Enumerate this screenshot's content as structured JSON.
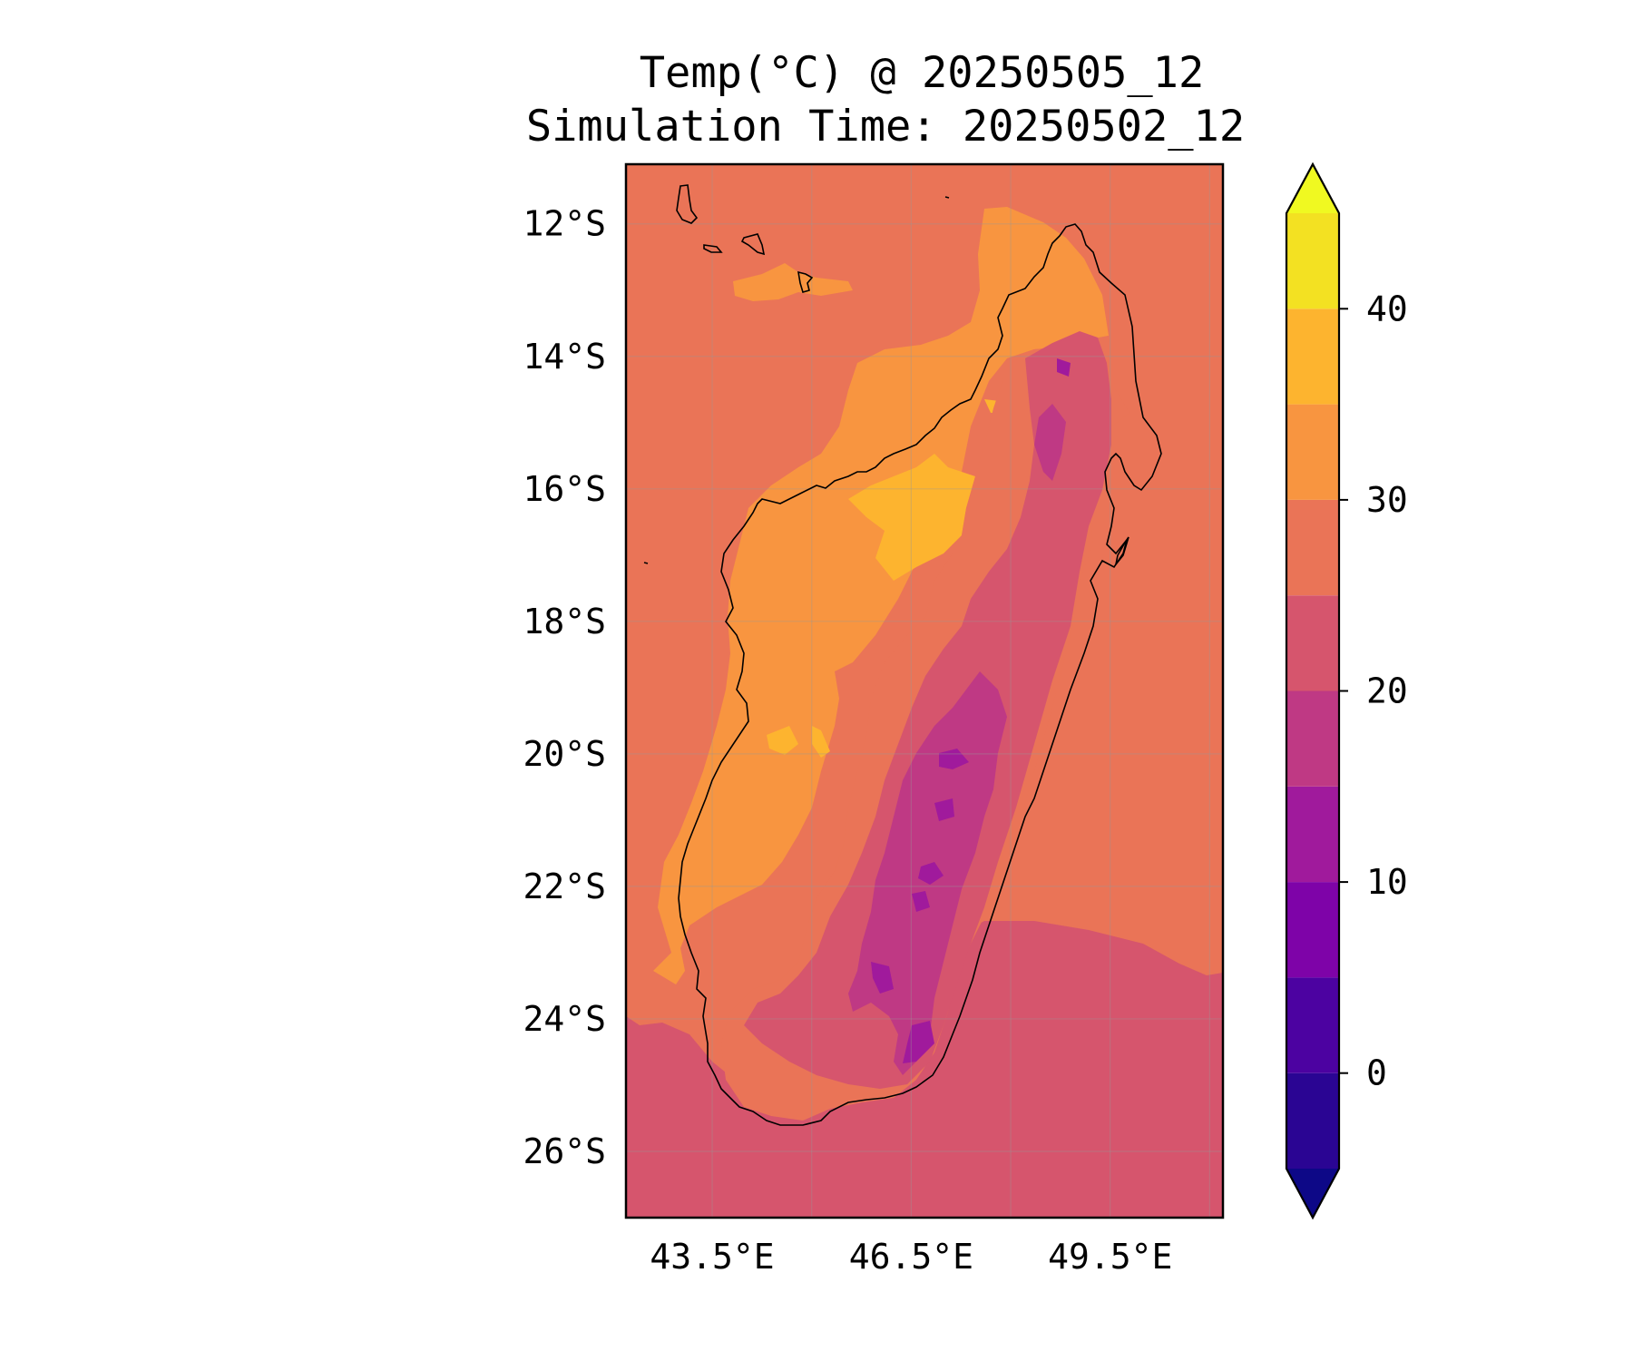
{
  "title_line1": "Temp(°C) @ 20250505_12",
  "title_line2": "Simulation Time: 20250502_12",
  "map": {
    "lon_range": [
      42.2,
      51.2
    ],
    "lat_range": [
      -27,
      -11.1
    ],
    "lat_ticks": [
      {
        "value": -12,
        "label": "12°S"
      },
      {
        "value": -14,
        "label": "14°S"
      },
      {
        "value": -16,
        "label": "16°S"
      },
      {
        "value": -18,
        "label": "18°S"
      },
      {
        "value": -20,
        "label": "20°S"
      },
      {
        "value": -22,
        "label": "22°S"
      },
      {
        "value": -24,
        "label": "24°S"
      },
      {
        "value": -26,
        "label": "26°S"
      }
    ],
    "lon_ticks": [
      {
        "value": 43.5,
        "label": "43.5°E"
      },
      {
        "value": 46.5,
        "label": "46.5°E"
      },
      {
        "value": 49.5,
        "label": "49.5°E"
      }
    ],
    "gridlines": true
  },
  "colorbar": {
    "levels": [
      -5,
      0,
      5,
      10,
      15,
      20,
      25,
      30,
      35,
      40,
      45
    ],
    "colors": [
      "#2a0593",
      "#4c02a1",
      "#7e03a8",
      "#a01a9c",
      "#bf3984",
      "#d6556d",
      "#ea7457",
      "#f89540",
      "#fdb42f",
      "#f3e122"
    ],
    "under_color": "#0d0887",
    "over_color": "#f0f921",
    "tick_labels": [
      {
        "value": 0,
        "label": "0"
      },
      {
        "value": 10,
        "label": "10"
      },
      {
        "value": 20,
        "label": "20"
      },
      {
        "value": 30,
        "label": "30"
      },
      {
        "value": 40,
        "label": "40"
      }
    ],
    "extend": "both"
  }
}
